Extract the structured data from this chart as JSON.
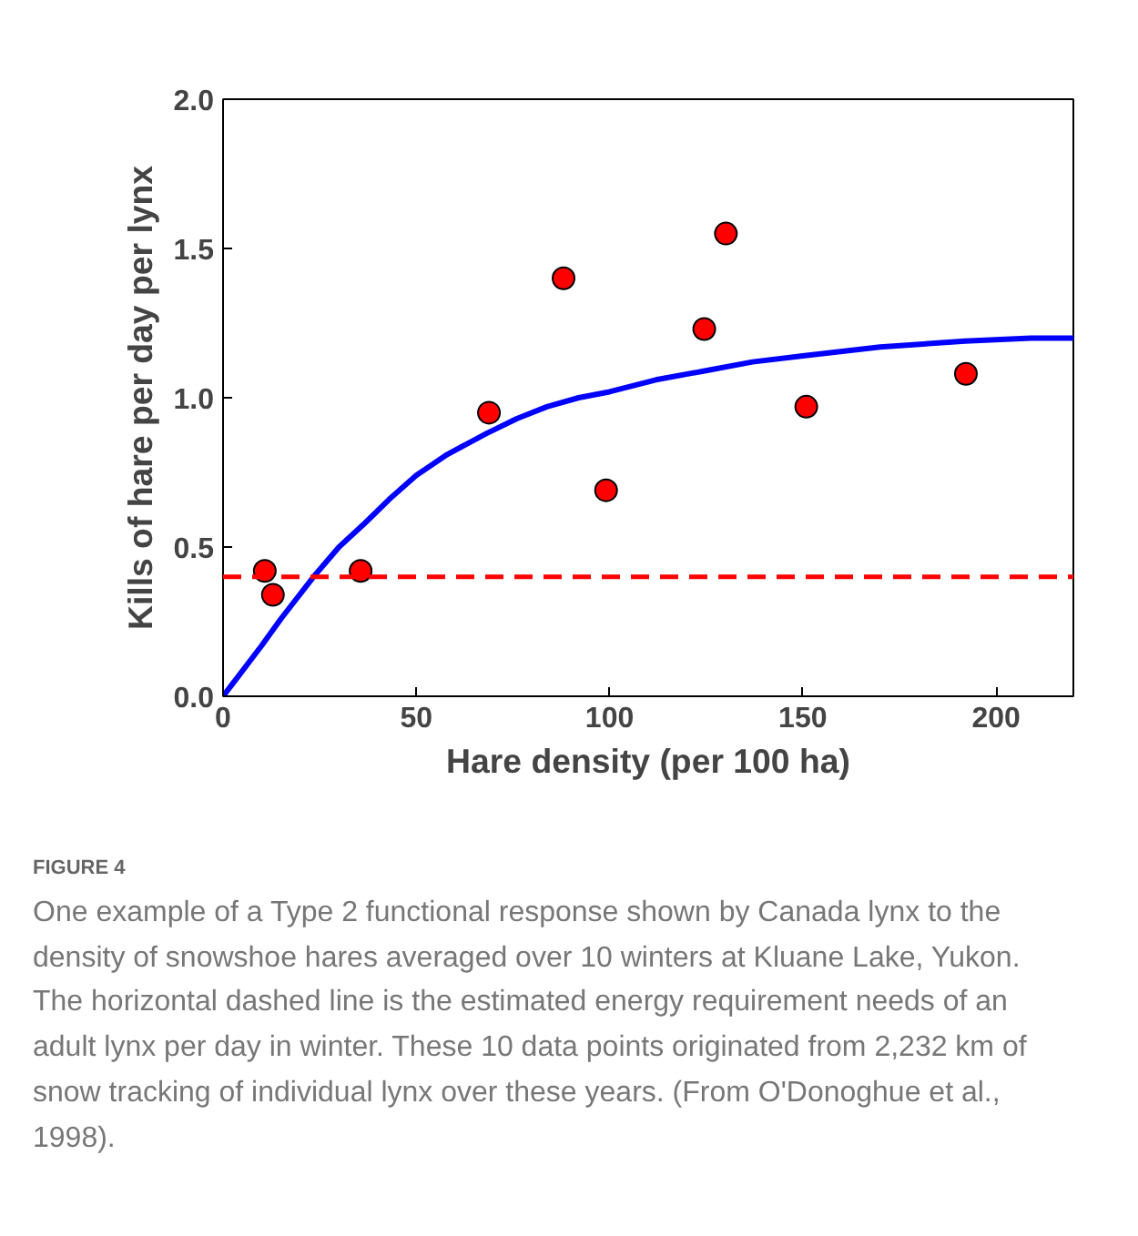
{
  "chart_data": {
    "type": "scatter",
    "xlabel": "Hare density (per 100 ha)",
    "ylabel": "Kills of hare per day per lynx",
    "x": [
      10.8,
      12.9,
      35.6,
      68.8,
      88.1,
      99.1,
      124.5,
      130.1,
      150.9,
      192.2
    ],
    "series": [
      {
        "color": "#ff0000",
        "marker": "circle",
        "values": [
          0.42,
          0.34,
          0.42,
          0.95,
          1.4,
          0.69,
          1.23,
          1.55,
          0.97,
          1.08
        ]
      },
      {
        "type": "line",
        "color": "#0000ff",
        "line_style": "solid",
        "x": [
          0,
          10,
          15,
          23.4,
          30,
          36.7,
          43,
          50,
          58,
          68.1,
          76,
          83.8,
          92,
          100,
          112,
          124.6,
          137,
          150,
          170,
          192,
          209,
          220
        ],
        "values": [
          0,
          0.17,
          0.26,
          0.4,
          0.5,
          0.58,
          0.66,
          0.74,
          0.81,
          0.88,
          0.93,
          0.97,
          1.0,
          1.02,
          1.06,
          1.09,
          1.12,
          1.14,
          1.17,
          1.19,
          1.2,
          1.2
        ]
      }
    ],
    "ref_lines": [
      {
        "axis": "y",
        "value": 0.4,
        "color": "#ff0000",
        "line_style": "dashed"
      }
    ],
    "xlim": [
      0,
      220
    ],
    "xticks": [
      0,
      50,
      100,
      150,
      200
    ],
    "ylim": [
      0,
      2.0
    ],
    "yticks": [
      {
        "value": 0,
        "label": "0.0"
      },
      {
        "value": 0.5,
        "label": "0.5"
      },
      {
        "value": 1,
        "label": "1.0"
      },
      {
        "value": 1.5,
        "label": "1.5"
      },
      {
        "value": 2,
        "label": "2.0"
      }
    ],
    "grid": false,
    "annotations": [
      "FIGURE 4",
      "One example of a Type 2 functional response shown by Canada lynx to the density of snowshoe hares averaged over 10 winters at Kluane Lake, Yukon. The horizontal dashed line is the estimated energy requirement needs of an adult lynx per day in winter. These 10 data points originated from 2,232 km of snow tracking of individual lynx over these years. (From O'Donoghue et al., 1998)."
    ]
  }
}
